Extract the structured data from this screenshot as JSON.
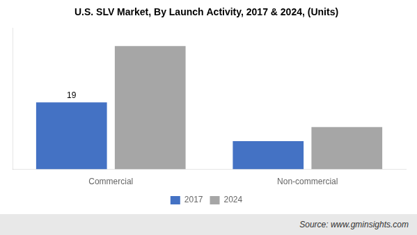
{
  "chart_data": {
    "type": "bar",
    "title": "U.S. SLV Market, By Launch Activity, 2017 & 2024, (Units)",
    "categories": [
      "Commercial",
      "Non-commercial"
    ],
    "series": [
      {
        "name": "2017",
        "color": "#4472c4",
        "values": [
          19,
          8
        ],
        "value_labels": [
          "19",
          null
        ]
      },
      {
        "name": "2024",
        "color": "#a6a6a6",
        "values": [
          35,
          12
        ]
      }
    ],
    "ylim": [
      0,
      40
    ],
    "grid": false,
    "legend": "bottom",
    "tick_labels": "x",
    "source": "Source: www.gminsights.com"
  }
}
